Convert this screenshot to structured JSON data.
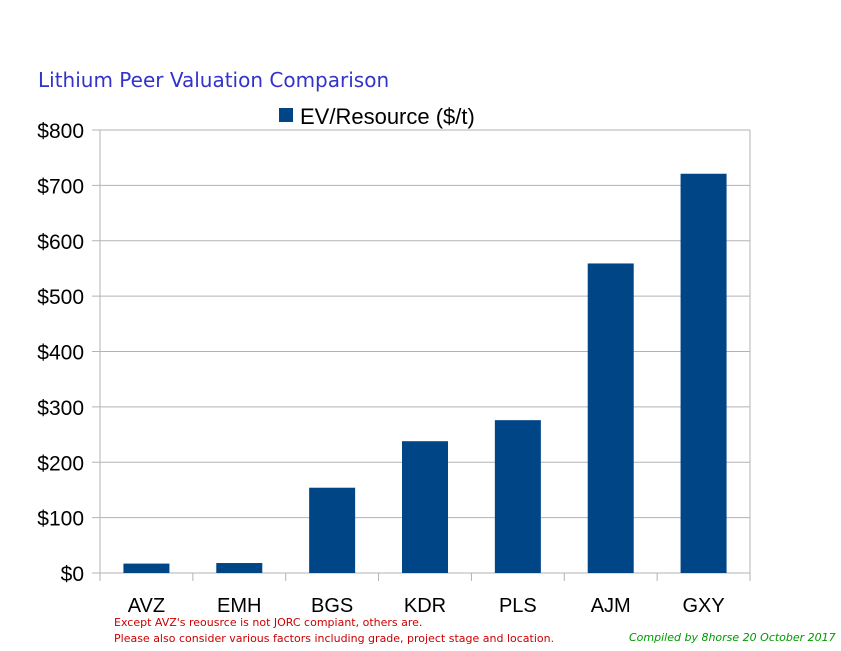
{
  "chart_data": {
    "type": "bar",
    "title": "Lithium Peer Valuation Comparison",
    "categories": [
      "AVZ",
      "EMH",
      "BGS",
      "KDR",
      "PLS",
      "AJM",
      "GXY"
    ],
    "series": [
      {
        "name": "EV/Resource  ($/t)",
        "values": [
          17,
          18,
          154,
          238,
          276,
          559,
          721
        ]
      }
    ],
    "ylim": [
      0,
      800
    ],
    "yticks": [
      0,
      100,
      200,
      300,
      400,
      500,
      600,
      700,
      800
    ],
    "ytick_labels": [
      "$0",
      "$100",
      "$200",
      "$300",
      "$400",
      "$500",
      "$600",
      "$700",
      "$800"
    ],
    "xlabel": "",
    "ylabel": "",
    "grid": true,
    "legend_position": "top-center"
  },
  "notes": [
    "Except AVZ's reousrce is not JORC compiant, others are.",
    "Please also consider various factors including grade, project stage and location."
  ],
  "credit": "Compiled by 8horse 20 October 2017",
  "colors": {
    "bar": "#004586",
    "title": "#3333cc",
    "note": "#cc0000",
    "credit": "#009900",
    "grid": "#b3b3b3"
  }
}
